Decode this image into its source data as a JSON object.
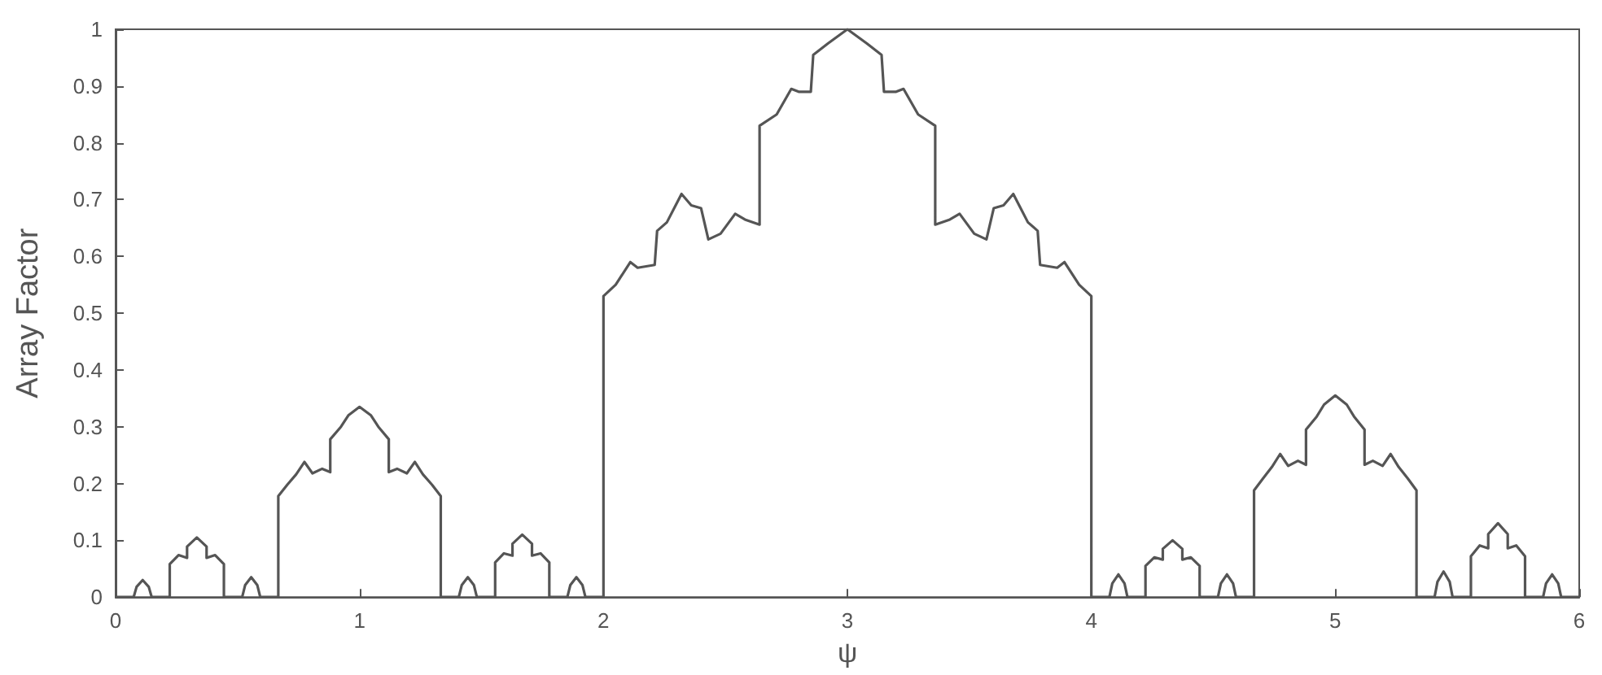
{
  "chart_data": {
    "type": "line",
    "xlabel": "ψ",
    "ylabel": "Array Factor",
    "xlim": [
      0,
      6
    ],
    "xticks": [
      0,
      1,
      2,
      3,
      4,
      5,
      6
    ],
    "ylim": [
      0,
      1
    ],
    "yticks": [
      0,
      0.1,
      0.2,
      0.3,
      0.4,
      0.5,
      0.6,
      0.7,
      0.8,
      0.9,
      1
    ],
    "grid": false,
    "marker": "none",
    "line_style": "solid",
    "series": [
      {
        "color": "#555555",
        "x": [
          0,
          0.074,
          0.086,
          0.111,
          0.136,
          0.148,
          0.222,
          0.222,
          0.258,
          0.293,
          0.293,
          0.333,
          0.373,
          0.373,
          0.408,
          0.444,
          0.444,
          0.519,
          0.531,
          0.556,
          0.581,
          0.593,
          0.667,
          0.667,
          0.704,
          0.74,
          0.774,
          0.807,
          0.847,
          0.88,
          0.88,
          0.924,
          0.954,
          1.0,
          1.047,
          1.077,
          1.12,
          1.12,
          1.154,
          1.194,
          1.227,
          1.26,
          1.297,
          1.333,
          1.333,
          1.407,
          1.419,
          1.444,
          1.469,
          1.481,
          1.556,
          1.556,
          1.592,
          1.627,
          1.627,
          1.667,
          1.707,
          1.707,
          1.742,
          1.778,
          1.778,
          1.852,
          1.864,
          1.889,
          1.914,
          1.926,
          2,
          2,
          2.05,
          2.11,
          2.14,
          2.21,
          2.22,
          2.26,
          2.32,
          2.36,
          2.4,
          2.43,
          2.48,
          2.54,
          2.58,
          2.64,
          2.64,
          2.71,
          2.77,
          2.8,
          2.85,
          2.86,
          2.92,
          3.0,
          3.08,
          3.14,
          3.15,
          3.2,
          3.23,
          3.29,
          3.36,
          3.36,
          3.42,
          3.46,
          3.52,
          3.57,
          3.6,
          3.64,
          3.68,
          3.74,
          3.78,
          3.79,
          3.86,
          3.89,
          3.95,
          4,
          4,
          4.074,
          4.086,
          4.111,
          4.136,
          4.148,
          4.222,
          4.222,
          4.258,
          4.293,
          4.293,
          4.333,
          4.373,
          4.373,
          4.408,
          4.444,
          4.444,
          4.519,
          4.531,
          4.556,
          4.581,
          4.593,
          4.667,
          4.667,
          4.704,
          4.74,
          4.774,
          4.807,
          4.847,
          4.88,
          4.88,
          4.924,
          4.954,
          5.0,
          5.047,
          5.077,
          5.12,
          5.12,
          5.154,
          5.194,
          5.227,
          5.26,
          5.297,
          5.333,
          5.333,
          5.407,
          5.419,
          5.444,
          5.469,
          5.481,
          5.556,
          5.556,
          5.592,
          5.627,
          5.627,
          5.667,
          5.707,
          5.707,
          5.742,
          5.778,
          5.778,
          5.852,
          5.864,
          5.889,
          5.914,
          5.926,
          6
        ],
        "values": [
          0,
          0,
          0.018,
          0.03,
          0.018,
          0,
          0,
          0.058,
          0.074,
          0.069,
          0.089,
          0.105,
          0.089,
          0.069,
          0.074,
          0.058,
          0,
          0,
          0.021,
          0.035,
          0.021,
          0,
          0,
          0.178,
          0.198,
          0.216,
          0.238,
          0.218,
          0.226,
          0.22,
          0.278,
          0.3,
          0.32,
          0.335,
          0.32,
          0.3,
          0.278,
          0.22,
          0.226,
          0.218,
          0.238,
          0.216,
          0.198,
          0.178,
          0,
          0,
          0.021,
          0.035,
          0.021,
          0,
          0,
          0.061,
          0.077,
          0.073,
          0.094,
          0.11,
          0.094,
          0.073,
          0.077,
          0.061,
          0,
          0,
          0.021,
          0.035,
          0.021,
          0,
          0,
          0.53,
          0.55,
          0.59,
          0.58,
          0.585,
          0.645,
          0.66,
          0.71,
          0.69,
          0.685,
          0.63,
          0.64,
          0.675,
          0.665,
          0.656,
          0.83,
          0.85,
          0.895,
          0.89,
          0.89,
          0.955,
          0.975,
          1.0,
          0.975,
          0.955,
          0.89,
          0.89,
          0.895,
          0.85,
          0.83,
          0.656,
          0.665,
          0.675,
          0.64,
          0.63,
          0.685,
          0.69,
          0.71,
          0.66,
          0.645,
          0.585,
          0.58,
          0.59,
          0.55,
          0.53,
          0,
          0,
          0.024,
          0.04,
          0.024,
          0,
          0,
          0.055,
          0.07,
          0.066,
          0.085,
          0.1,
          0.085,
          0.066,
          0.07,
          0.055,
          0,
          0,
          0.024,
          0.04,
          0.024,
          0,
          0,
          0.188,
          0.209,
          0.229,
          0.252,
          0.231,
          0.24,
          0.233,
          0.295,
          0.318,
          0.339,
          0.355,
          0.339,
          0.318,
          0.295,
          0.233,
          0.24,
          0.231,
          0.252,
          0.229,
          0.209,
          0.188,
          0,
          0,
          0.027,
          0.045,
          0.027,
          0,
          0,
          0.072,
          0.091,
          0.086,
          0.111,
          0.13,
          0.111,
          0.086,
          0.091,
          0.072,
          0,
          0,
          0.024,
          0.04,
          0.024,
          0,
          0
        ]
      }
    ]
  }
}
